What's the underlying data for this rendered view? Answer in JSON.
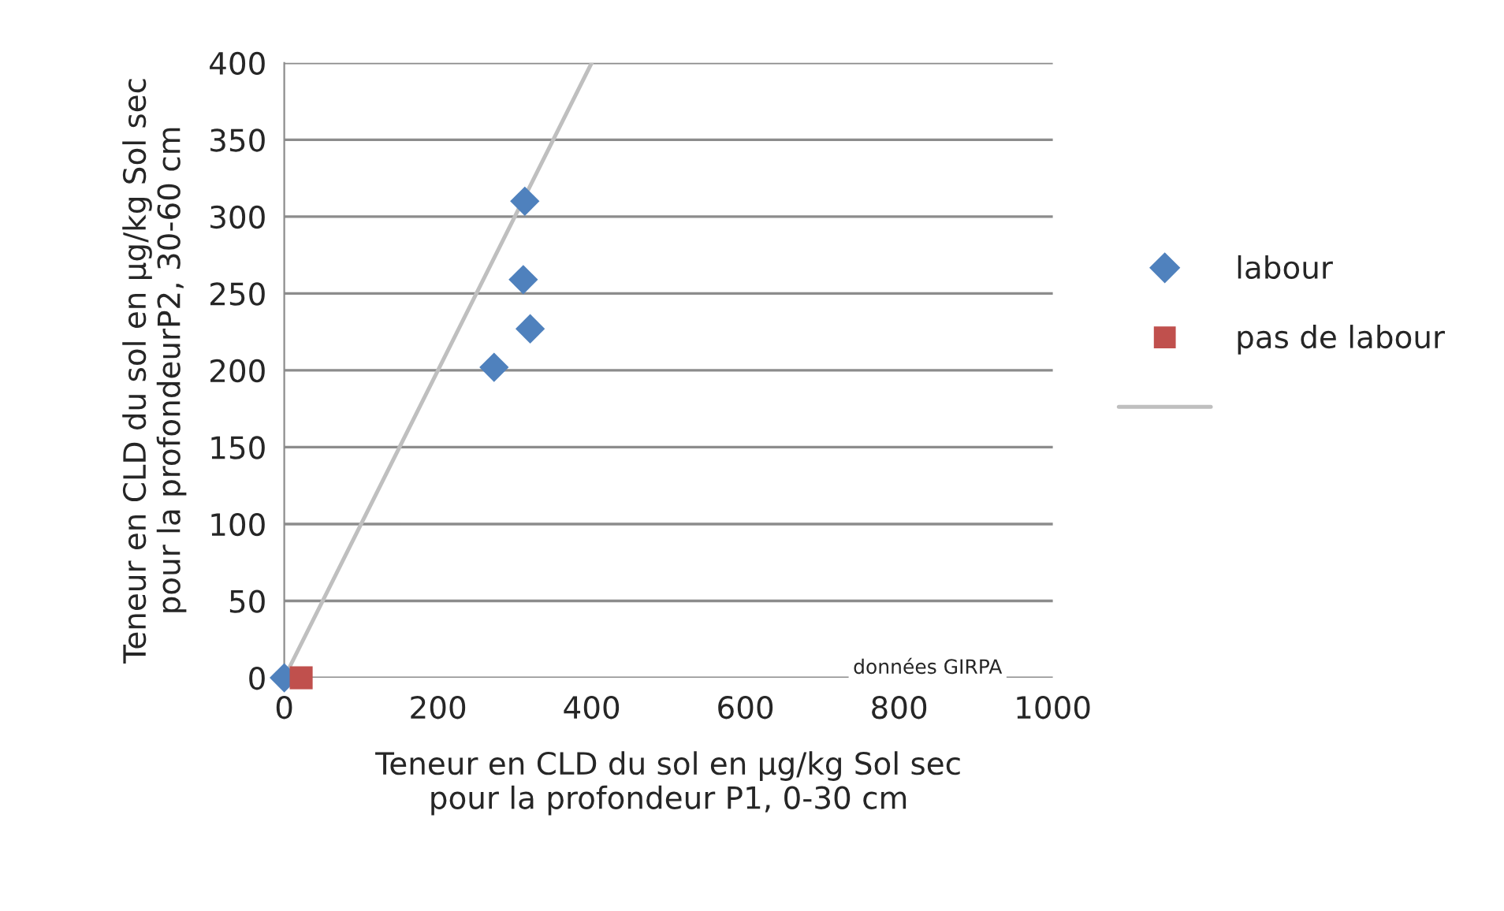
{
  "chart_data": {
    "type": "scatter",
    "xlabel": "Teneur en CLD du sol en µg/kg Sol sec\npour la profondeur P1, 0-30 cm",
    "ylabel": "Teneur en CLD du sol en µg/kg Sol sec\npour la profondeurP2, 30-60 cm",
    "annotations": [
      "données GIRPA"
    ],
    "series": [
      {
        "name": "labour",
        "color": "#4f81bd",
        "marker": "diamond",
        "x": [
          313,
          311,
          320,
          273,
          0
        ],
        "values": [
          310,
          259,
          227,
          202,
          0
        ]
      },
      {
        "name": "pas de labour",
        "color": "#c0504d",
        "marker": "square",
        "x": [
          22
        ],
        "values": [
          0
        ]
      },
      {
        "type": "line",
        "color": "#bfbfbf",
        "marker": "none",
        "x": [
          0,
          400
        ],
        "values": [
          0,
          400
        ]
      }
    ],
    "xlim": [
      0,
      1000
    ],
    "xticks": [
      0,
      200,
      400,
      600,
      800,
      1000
    ],
    "ylim": [
      0,
      400
    ],
    "yticks": [
      0,
      50,
      100,
      150,
      200,
      250,
      300,
      350,
      400
    ],
    "grid": "y",
    "legend": "right"
  }
}
